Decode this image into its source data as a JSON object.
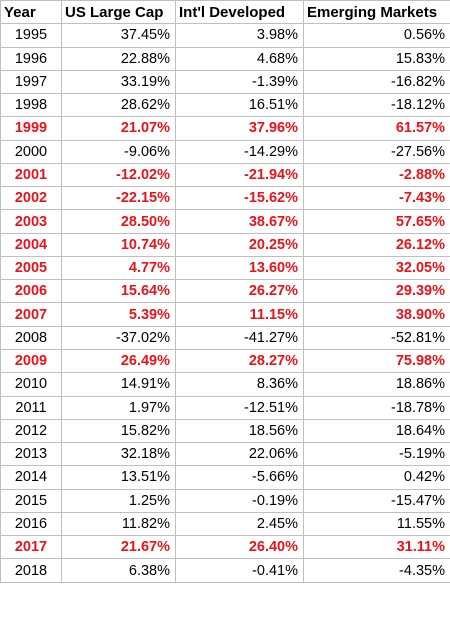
{
  "chart_data": {
    "type": "table",
    "highlight_color": "#e8141b",
    "text_color": "#000000",
    "grid_color": "#bfbfbf",
    "columns": [
      "Year",
      "US Large Cap",
      "Int'l Developed",
      "Emerging Markets"
    ],
    "rows": [
      {
        "year": "1995",
        "us_large_cap": "37.45%",
        "intl_developed": "3.98%",
        "emerging_markets": "0.56%",
        "highlighted": false
      },
      {
        "year": "1996",
        "us_large_cap": "22.88%",
        "intl_developed": "4.68%",
        "emerging_markets": "15.83%",
        "highlighted": false
      },
      {
        "year": "1997",
        "us_large_cap": "33.19%",
        "intl_developed": "-1.39%",
        "emerging_markets": "-16.82%",
        "highlighted": false
      },
      {
        "year": "1998",
        "us_large_cap": "28.62%",
        "intl_developed": "16.51%",
        "emerging_markets": "-18.12%",
        "highlighted": false
      },
      {
        "year": "1999",
        "us_large_cap": "21.07%",
        "intl_developed": "37.96%",
        "emerging_markets": "61.57%",
        "highlighted": true
      },
      {
        "year": "2000",
        "us_large_cap": "-9.06%",
        "intl_developed": "-14.29%",
        "emerging_markets": "-27.56%",
        "highlighted": false
      },
      {
        "year": "2001",
        "us_large_cap": "-12.02%",
        "intl_developed": "-21.94%",
        "emerging_markets": "-2.88%",
        "highlighted": true
      },
      {
        "year": "2002",
        "us_large_cap": "-22.15%",
        "intl_developed": "-15.62%",
        "emerging_markets": "-7.43%",
        "highlighted": true
      },
      {
        "year": "2003",
        "us_large_cap": "28.50%",
        "intl_developed": "38.67%",
        "emerging_markets": "57.65%",
        "highlighted": true
      },
      {
        "year": "2004",
        "us_large_cap": "10.74%",
        "intl_developed": "20.25%",
        "emerging_markets": "26.12%",
        "highlighted": true
      },
      {
        "year": "2005",
        "us_large_cap": "4.77%",
        "intl_developed": "13.60%",
        "emerging_markets": "32.05%",
        "highlighted": true
      },
      {
        "year": "2006",
        "us_large_cap": "15.64%",
        "intl_developed": "26.27%",
        "emerging_markets": "29.39%",
        "highlighted": true
      },
      {
        "year": "2007",
        "us_large_cap": "5.39%",
        "intl_developed": "11.15%",
        "emerging_markets": "38.90%",
        "highlighted": true
      },
      {
        "year": "2008",
        "us_large_cap": "-37.02%",
        "intl_developed": "-41.27%",
        "emerging_markets": "-52.81%",
        "highlighted": false
      },
      {
        "year": "2009",
        "us_large_cap": "26.49%",
        "intl_developed": "28.27%",
        "emerging_markets": "75.98%",
        "highlighted": true
      },
      {
        "year": "2010",
        "us_large_cap": "14.91%",
        "intl_developed": "8.36%",
        "emerging_markets": "18.86%",
        "highlighted": false
      },
      {
        "year": "2011",
        "us_large_cap": "1.97%",
        "intl_developed": "-12.51%",
        "emerging_markets": "-18.78%",
        "highlighted": false
      },
      {
        "year": "2012",
        "us_large_cap": "15.82%",
        "intl_developed": "18.56%",
        "emerging_markets": "18.64%",
        "highlighted": false
      },
      {
        "year": "2013",
        "us_large_cap": "32.18%",
        "intl_developed": "22.06%",
        "emerging_markets": "-5.19%",
        "highlighted": false
      },
      {
        "year": "2014",
        "us_large_cap": "13.51%",
        "intl_developed": "-5.66%",
        "emerging_markets": "0.42%",
        "highlighted": false
      },
      {
        "year": "2015",
        "us_large_cap": "1.25%",
        "intl_developed": "-0.19%",
        "emerging_markets": "-15.47%",
        "highlighted": false
      },
      {
        "year": "2016",
        "us_large_cap": "11.82%",
        "intl_developed": "2.45%",
        "emerging_markets": "11.55%",
        "highlighted": false
      },
      {
        "year": "2017",
        "us_large_cap": "21.67%",
        "intl_developed": "26.40%",
        "emerging_markets": "31.11%",
        "highlighted": true
      },
      {
        "year": "2018",
        "us_large_cap": "6.38%",
        "intl_developed": "-0.41%",
        "emerging_markets": "-4.35%",
        "highlighted": false
      }
    ]
  }
}
